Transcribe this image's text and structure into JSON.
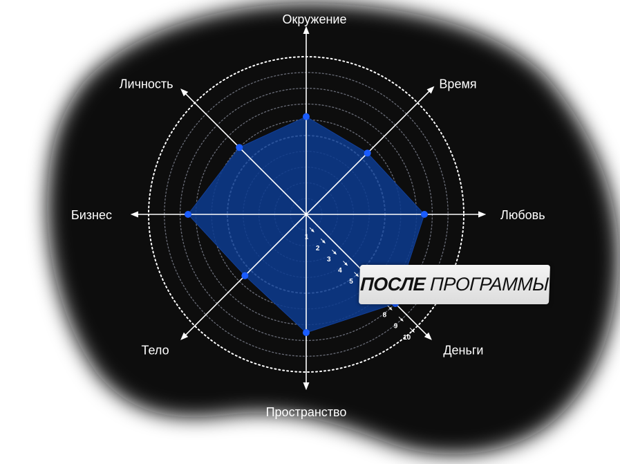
{
  "chart_data": {
    "type": "radar",
    "title": "",
    "axes": [
      "Окружение",
      "Время",
      "Любовь",
      "Деньги",
      "Пространство",
      "Тело",
      "Бизнес",
      "Личность"
    ],
    "scale": {
      "min": 0,
      "max": 10,
      "ticks": [
        1,
        2,
        3,
        4,
        5,
        6,
        7,
        8,
        9,
        10
      ],
      "shown_tick_labels": [
        1,
        2,
        3,
        4,
        5,
        8,
        9,
        10
      ]
    },
    "series": [
      {
        "values": [
          6.2,
          5.5,
          7.5,
          8.0,
          7.5,
          5.5,
          7.5,
          6.0
        ]
      }
    ],
    "grid": true,
    "legend": "none"
  },
  "badge": {
    "bold": "ПОСЛЕ",
    "light": "ПРОГРАММЫ"
  },
  "colors": {
    "background": "#0b0c10",
    "polygon_fill": "#0d3a8c",
    "point": "#1a5cff",
    "axis": "#ffffff"
  }
}
